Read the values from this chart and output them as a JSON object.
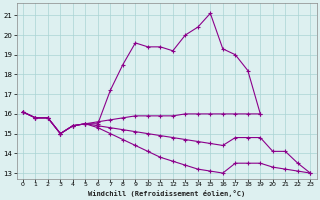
{
  "series": {
    "curve1_x": [
      0,
      1,
      2,
      3,
      4,
      5,
      6,
      7,
      8,
      9,
      10,
      11,
      12,
      13,
      14,
      15,
      16,
      17,
      18,
      19
    ],
    "curve1_y": [
      16.1,
      15.8,
      15.8,
      15.0,
      15.4,
      15.5,
      15.5,
      17.2,
      18.5,
      19.6,
      19.4,
      19.4,
      19.2,
      20.0,
      20.4,
      21.1,
      19.3,
      19.0,
      18.2,
      16.0
    ],
    "curve2_x": [
      0,
      1,
      2,
      3,
      4,
      5,
      6,
      7,
      8,
      9,
      10,
      11,
      12,
      13,
      14,
      15,
      16,
      17,
      18,
      19
    ],
    "curve2_y": [
      16.1,
      15.8,
      15.8,
      15.0,
      15.4,
      15.5,
      15.6,
      15.7,
      15.8,
      15.9,
      15.9,
      15.9,
      15.9,
      16.0,
      16.0,
      16.0,
      16.0,
      16.0,
      16.0,
      16.0
    ],
    "curve3_x": [
      0,
      1,
      2,
      3,
      4,
      5,
      6,
      7,
      8,
      9,
      10,
      11,
      12,
      13,
      14,
      15,
      16,
      17,
      18,
      19,
      20,
      21,
      22,
      23
    ],
    "curve3_y": [
      16.1,
      15.8,
      15.8,
      15.0,
      15.4,
      15.5,
      15.4,
      15.3,
      15.2,
      15.1,
      15.0,
      14.9,
      14.8,
      14.7,
      14.6,
      14.5,
      14.4,
      14.8,
      14.8,
      14.8,
      14.1,
      14.1,
      13.5,
      13.0
    ],
    "curve4_x": [
      0,
      1,
      2,
      3,
      4,
      5,
      6,
      7,
      8,
      9,
      10,
      11,
      12,
      13,
      14,
      15,
      16,
      17,
      18,
      19,
      20,
      21,
      22,
      23
    ],
    "curve4_y": [
      16.1,
      15.8,
      15.8,
      15.0,
      15.4,
      15.5,
      15.3,
      15.0,
      14.7,
      14.4,
      14.1,
      13.8,
      13.6,
      13.4,
      13.2,
      13.1,
      13.0,
      13.5,
      13.5,
      13.5,
      13.3,
      13.2,
      13.1,
      13.0
    ]
  },
  "line_color": "#8B008B",
  "bg_color": "#ddf0f0",
  "grid_color": "#aad4d4",
  "xlabel": "Windchill (Refroidissement éolien,°C)",
  "ylabel_ticks": [
    13,
    14,
    15,
    16,
    17,
    18,
    19,
    20,
    21
  ],
  "xlabel_ticks": [
    0,
    1,
    2,
    3,
    4,
    5,
    6,
    7,
    8,
    9,
    10,
    11,
    12,
    13,
    14,
    15,
    16,
    17,
    18,
    19,
    20,
    21,
    22,
    23
  ],
  "xlim": [
    -0.5,
    23.5
  ],
  "ylim": [
    12.7,
    21.6
  ]
}
